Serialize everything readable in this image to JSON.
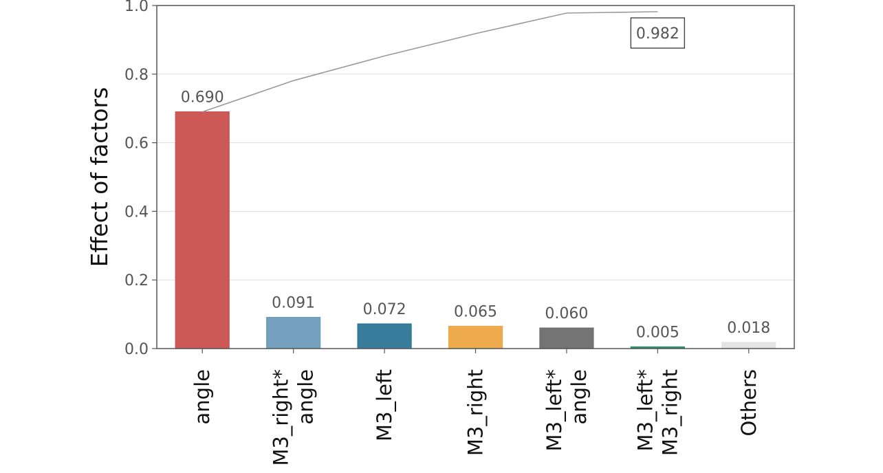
{
  "chart_data": {
    "type": "bar",
    "ylabel": "Effect of factors",
    "xlabel": "",
    "ylim": [
      0,
      1.0
    ],
    "yticks": [
      0.0,
      0.2,
      0.4,
      0.6,
      0.8,
      1.0
    ],
    "ytick_labels": [
      "0.0",
      "0.2",
      "0.4",
      "0.6",
      "0.8",
      "1.0"
    ],
    "grid": "horizontal",
    "categories": [
      [
        "angle"
      ],
      [
        "M3_right*",
        "angle"
      ],
      [
        "M3_left"
      ],
      [
        "M3_right"
      ],
      [
        "M3_left*",
        "angle"
      ],
      [
        "M3_left*",
        "M3_right"
      ],
      [
        "Others"
      ]
    ],
    "values": [
      0.69,
      0.091,
      0.072,
      0.065,
      0.06,
      0.005,
      0.018
    ],
    "value_labels": [
      "0.690",
      "0.091",
      "0.072",
      "0.065",
      "0.060",
      "0.005",
      "0.018"
    ],
    "colors": [
      "#c9504c",
      "#6b9cb9",
      "#2e7496",
      "#eca645",
      "#6d6d6d",
      "#2c8a5c",
      "#e3e3e3"
    ],
    "cumulative_line": {
      "values": [
        0.69,
        0.781,
        0.853,
        0.918,
        0.978,
        0.982
      ],
      "color": "#999999",
      "end_label": "0.982"
    }
  }
}
